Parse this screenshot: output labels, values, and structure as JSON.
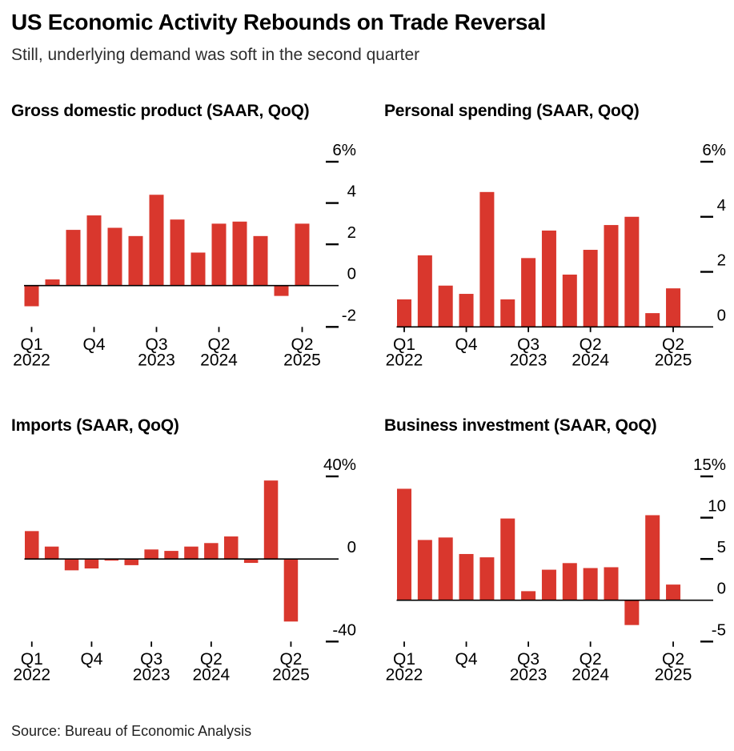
{
  "header": {
    "title": "US Economic Activity Rebounds on Trade Reversal",
    "subtitle": "Still, underlying demand was soft in the second quarter"
  },
  "source": "Source: Bureau of Economic Analysis",
  "colors": {
    "bar": "#d9372d",
    "axis": "#000000",
    "tick_text": "#000000",
    "background": "#ffffff"
  },
  "chart_data": [
    {
      "key": "gdp",
      "type": "bar",
      "title": "Gross domestic product (SAAR, QoQ)",
      "unit": "%",
      "categories": [
        "Q1 2022",
        "Q2 2022",
        "Q3 2022",
        "Q4 2022",
        "Q1 2023",
        "Q2 2023",
        "Q3 2023",
        "Q4 2023",
        "Q1 2024",
        "Q2 2024",
        "Q3 2024",
        "Q4 2024",
        "Q1 2025",
        "Q2 2025"
      ],
      "values": [
        -1.0,
        0.3,
        2.7,
        3.4,
        2.8,
        2.4,
        4.4,
        3.2,
        1.6,
        3.0,
        3.1,
        2.4,
        -0.5,
        3.0
      ],
      "ylim": [
        -2,
        6
      ],
      "yticks": [
        {
          "value": 6,
          "label": "6%"
        },
        {
          "value": 4,
          "label": "4"
        },
        {
          "value": 2,
          "label": "2"
        },
        {
          "value": 0,
          "label": "0"
        },
        {
          "value": -2,
          "label": "-2"
        }
      ],
      "xticks": [
        {
          "index": 0,
          "line1": "Q1",
          "line2": "2022"
        },
        {
          "index": 3,
          "line1": "Q4",
          "line2": ""
        },
        {
          "index": 6,
          "line1": "Q3",
          "line2": "2023"
        },
        {
          "index": 9,
          "line1": "Q2",
          "line2": "2024"
        },
        {
          "index": 13,
          "line1": "Q2",
          "line2": "2025"
        }
      ],
      "grid": false,
      "legend": "none"
    },
    {
      "key": "personal-spending",
      "type": "bar",
      "title": "Personal spending (SAAR, QoQ)",
      "unit": "%",
      "categories": [
        "Q1 2022",
        "Q2 2022",
        "Q3 2022",
        "Q4 2022",
        "Q1 2023",
        "Q2 2023",
        "Q3 2023",
        "Q4 2023",
        "Q1 2024",
        "Q2 2024",
        "Q3 2024",
        "Q4 2024",
        "Q1 2025",
        "Q2 2025"
      ],
      "values": [
        1.0,
        2.6,
        1.5,
        1.2,
        4.9,
        1.0,
        2.5,
        3.5,
        1.9,
        2.8,
        3.7,
        4.0,
        0.5,
        1.4
      ],
      "ylim": [
        0,
        6
      ],
      "yticks": [
        {
          "value": 6,
          "label": "6%"
        },
        {
          "value": 4,
          "label": "4"
        },
        {
          "value": 2,
          "label": "2"
        },
        {
          "value": 0,
          "label": "0"
        }
      ],
      "xticks": [
        {
          "index": 0,
          "line1": "Q1",
          "line2": "2022"
        },
        {
          "index": 3,
          "line1": "Q4",
          "line2": ""
        },
        {
          "index": 6,
          "line1": "Q3",
          "line2": "2023"
        },
        {
          "index": 9,
          "line1": "Q2",
          "line2": "2024"
        },
        {
          "index": 13,
          "line1": "Q2",
          "line2": "2025"
        }
      ],
      "grid": false,
      "legend": "none"
    },
    {
      "key": "imports",
      "type": "bar",
      "title": "Imports (SAAR, QoQ)",
      "unit": "%",
      "categories": [
        "Q1 2022",
        "Q2 2022",
        "Q3 2022",
        "Q4 2022",
        "Q1 2023",
        "Q2 2023",
        "Q3 2023",
        "Q4 2023",
        "Q1 2024",
        "Q2 2024",
        "Q3 2024",
        "Q4 2024",
        "Q1 2025",
        "Q2 2025"
      ],
      "values": [
        13.5,
        6.0,
        -5.5,
        -4.6,
        -0.8,
        -3.0,
        4.6,
        3.9,
        6.0,
        7.7,
        10.9,
        -1.9,
        38.0,
        -30.3
      ],
      "ylim": [
        -40,
        40
      ],
      "yticks": [
        {
          "value": 40,
          "label": "40%"
        },
        {
          "value": 0,
          "label": "0"
        },
        {
          "value": -40,
          "label": "-40"
        }
      ],
      "xticks": [
        {
          "index": 0,
          "line1": "Q1",
          "line2": "2022"
        },
        {
          "index": 3,
          "line1": "Q4",
          "line2": ""
        },
        {
          "index": 6,
          "line1": "Q3",
          "line2": "2023"
        },
        {
          "index": 9,
          "line1": "Q2",
          "line2": "2024"
        },
        {
          "index": 13,
          "line1": "Q2",
          "line2": "2025"
        }
      ],
      "grid": false,
      "legend": "none"
    },
    {
      "key": "business-investment",
      "type": "bar",
      "title": "Business investment (SAAR, QoQ)",
      "unit": "%",
      "categories": [
        "Q1 2022",
        "Q2 2022",
        "Q3 2022",
        "Q4 2022",
        "Q1 2023",
        "Q2 2023",
        "Q3 2023",
        "Q4 2023",
        "Q1 2024",
        "Q2 2024",
        "Q3 2024",
        "Q4 2024",
        "Q1 2025",
        "Q2 2025"
      ],
      "values": [
        13.5,
        7.3,
        7.6,
        5.6,
        5.2,
        9.9,
        1.1,
        3.7,
        4.5,
        3.9,
        4.0,
        -3.0,
        10.3,
        1.9
      ],
      "ylim": [
        -5,
        15
      ],
      "yticks": [
        {
          "value": 15,
          "label": "15%"
        },
        {
          "value": 10,
          "label": "10"
        },
        {
          "value": 5,
          "label": "5"
        },
        {
          "value": 0,
          "label": "0"
        },
        {
          "value": -5,
          "label": "-5"
        }
      ],
      "xticks": [
        {
          "index": 0,
          "line1": "Q1",
          "line2": "2022"
        },
        {
          "index": 3,
          "line1": "Q4",
          "line2": ""
        },
        {
          "index": 6,
          "line1": "Q3",
          "line2": "2023"
        },
        {
          "index": 9,
          "line1": "Q2",
          "line2": "2024"
        },
        {
          "index": 13,
          "line1": "Q2",
          "line2": "2025"
        }
      ],
      "grid": false,
      "legend": "none"
    }
  ]
}
